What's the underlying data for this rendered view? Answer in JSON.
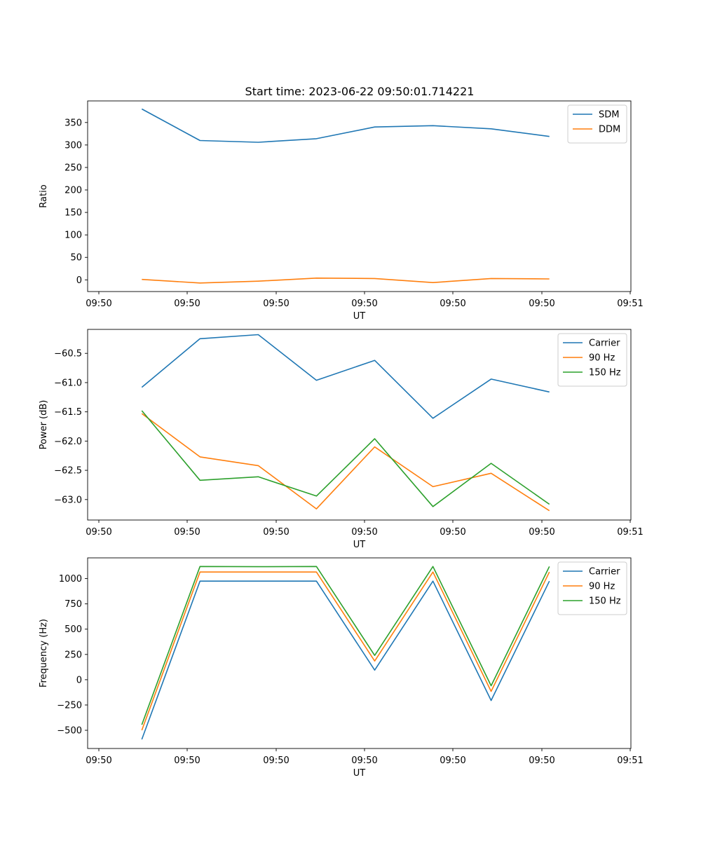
{
  "figure": {
    "title": "Start time: 2023-06-22 09:50:01.714221"
  },
  "colors": {
    "blue": "#1f77b4",
    "orange": "#ff7f0e",
    "green": "#2ca02c"
  },
  "x_tick_labels": [
    "09:50",
    "09:50",
    "09:50",
    "09:50",
    "09:50",
    "09:50",
    "09:51"
  ],
  "chart_data": [
    {
      "type": "line",
      "xlabel": "UT",
      "ylabel": "Ratio",
      "x_index": [
        0,
        1,
        2,
        3,
        4,
        5,
        6,
        7
      ],
      "xlim": [
        -0.93,
        8.4
      ],
      "ylim": [
        -26,
        398
      ],
      "yticks": [
        0,
        50,
        100,
        150,
        200,
        250,
        300,
        350
      ],
      "ytick_labels": [
        "0",
        "50",
        "100",
        "150",
        "200",
        "250",
        "300",
        "350"
      ],
      "legend_position": "top-right",
      "grid": false,
      "series": [
        {
          "name": "SDM",
          "color": "blue",
          "values": [
            380,
            310,
            306,
            314,
            340,
            343,
            336,
            319
          ]
        },
        {
          "name": "DDM",
          "color": "orange",
          "values": [
            1,
            -7,
            -3,
            4,
            3,
            -6,
            3,
            2
          ]
        }
      ]
    },
    {
      "type": "line",
      "xlabel": "UT",
      "ylabel": "Power (dB)",
      "x_index": [
        0,
        1,
        2,
        3,
        4,
        5,
        6,
        7
      ],
      "xlim": [
        -0.93,
        8.4
      ],
      "ylim": [
        -63.35,
        -60.09
      ],
      "yticks": [
        -63.0,
        -62.5,
        -62.0,
        -61.5,
        -61.0,
        -60.5
      ],
      "ytick_labels": [
        "−63.0",
        "−62.5",
        "−62.0",
        "−61.5",
        "−61.0",
        "−60.5"
      ],
      "legend_position": "top-right",
      "grid": false,
      "series": [
        {
          "name": "Carrier",
          "color": "blue",
          "values": [
            -61.08,
            -60.25,
            -60.18,
            -60.96,
            -60.62,
            -61.61,
            -60.94,
            -61.16
          ]
        },
        {
          "name": "90 Hz",
          "color": "orange",
          "values": [
            -61.53,
            -62.27,
            -62.42,
            -63.16,
            -62.1,
            -62.78,
            -62.55,
            -63.19
          ]
        },
        {
          "name": "150 Hz",
          "color": "green",
          "values": [
            -61.48,
            -62.67,
            -62.61,
            -62.94,
            -61.96,
            -63.12,
            -62.38,
            -63.08
          ]
        }
      ]
    },
    {
      "type": "line",
      "xlabel": "UT",
      "ylabel": "Frequency (Hz)",
      "x_index": [
        0,
        1,
        2,
        3,
        4,
        5,
        6,
        7
      ],
      "xlim": [
        -0.93,
        8.4
      ],
      "ylim": [
        -680,
        1205
      ],
      "yticks": [
        -500,
        -250,
        0,
        250,
        500,
        750,
        1000
      ],
      "ytick_labels": [
        "−500",
        "−250",
        "0",
        "250",
        "500",
        "750",
        "1000"
      ],
      "legend_position": "top-right",
      "grid": false,
      "series": [
        {
          "name": "Carrier",
          "color": "blue",
          "values": [
            -590,
            975,
            975,
            975,
            95,
            975,
            -205,
            975
          ]
        },
        {
          "name": "90 Hz",
          "color": "orange",
          "values": [
            -500,
            1065,
            1065,
            1065,
            185,
            1065,
            -115,
            1065
          ]
        },
        {
          "name": "150 Hz",
          "color": "green",
          "values": [
            -445,
            1120,
            1118,
            1120,
            240,
            1120,
            -60,
            1120
          ]
        }
      ]
    }
  ]
}
